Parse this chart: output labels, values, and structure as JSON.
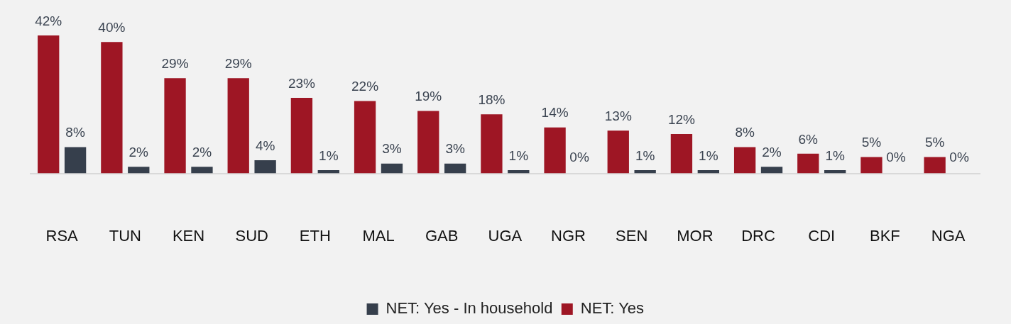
{
  "chart_data": {
    "type": "bar",
    "categories": [
      "RSA",
      "TUN",
      "KEN",
      "SUD",
      "ETH",
      "MAL",
      "GAB",
      "UGA",
      "NGR",
      "SEN",
      "MOR",
      "DRC",
      "CDI",
      "BKF",
      "NGA"
    ],
    "series": [
      {
        "name": "NET: Yes",
        "color": "#9e1624",
        "values": [
          42,
          40,
          29,
          29,
          23,
          22,
          19,
          18,
          14,
          13,
          12,
          8,
          6,
          5,
          5
        ],
        "value_labels": [
          "42%",
          "40%",
          "29%",
          "29%",
          "23%",
          "22%",
          "19%",
          "18%",
          "14%",
          "13%",
          "12%",
          "8%",
          "6%",
          "5%",
          "5%"
        ]
      },
      {
        "name": "NET: Yes - In household",
        "color": "#363f4c",
        "values": [
          8,
          2,
          2,
          4,
          1,
          3,
          3,
          1,
          0,
          1,
          1,
          2,
          1,
          0,
          0
        ],
        "value_labels": [
          "8%",
          "2%",
          "2%",
          "4%",
          "1%",
          "3%",
          "3%",
          "1%",
          "0%",
          "1%",
          "1%",
          "2%",
          "1%",
          "0%",
          "0%"
        ]
      }
    ],
    "grid": false,
    "legend": "bottom",
    "tick_labels": "x"
  }
}
